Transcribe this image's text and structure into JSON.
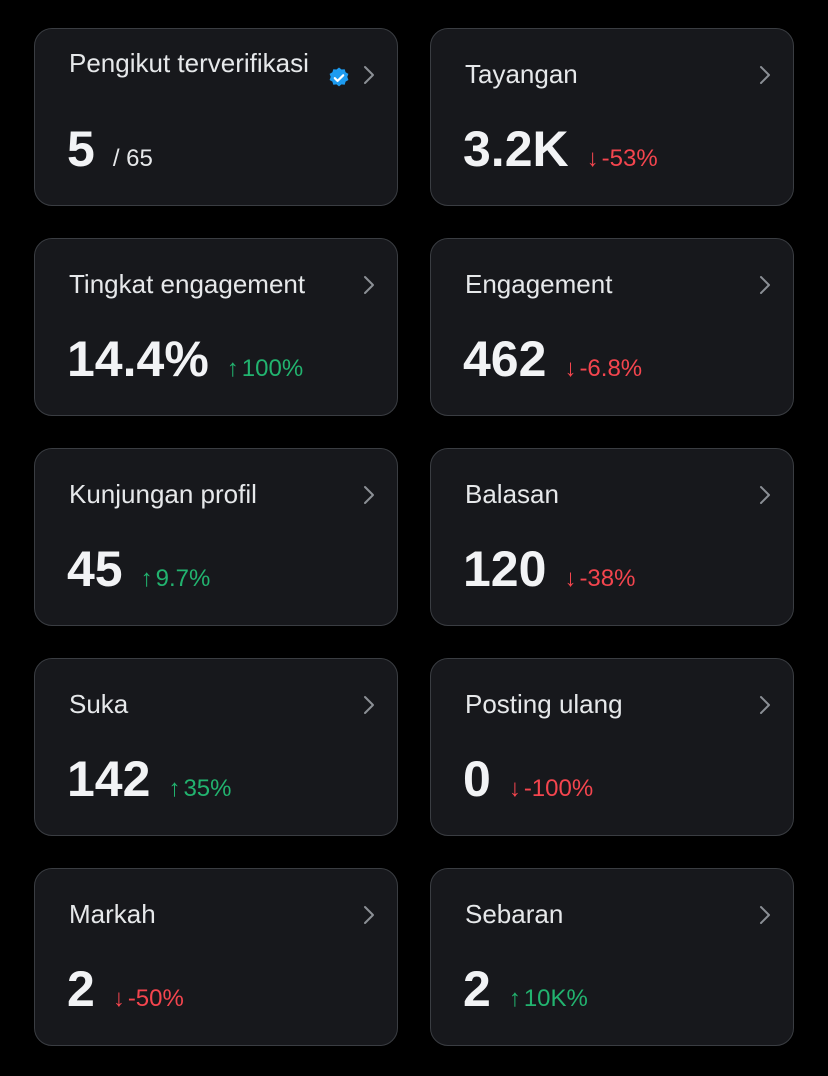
{
  "colors": {
    "background": "#000000",
    "card": "#17181c",
    "card_border": "#3a3d42",
    "positive": "#22b36f",
    "negative": "#f4454e",
    "verified": "#1d9bf0"
  },
  "cards": [
    {
      "label": "Pengikut terverifikasi",
      "value": "5",
      "sub": "/ 65",
      "icon": "verified-badge-icon"
    },
    {
      "label": "Tayangan",
      "value": "3.2K",
      "arrow": "↓",
      "delta": "-53%",
      "direction": "down"
    },
    {
      "label": "Tingkat engagement",
      "value": "14.4%",
      "arrow": "↑",
      "delta": "100%",
      "direction": "up"
    },
    {
      "label": "Engagement",
      "value": "462",
      "arrow": "↓",
      "delta": "-6.8%",
      "direction": "down"
    },
    {
      "label": "Kunjungan profil",
      "value": "45",
      "arrow": "↑",
      "delta": "9.7%",
      "direction": "up"
    },
    {
      "label": "Balasan",
      "value": "120",
      "arrow": "↓",
      "delta": "-38%",
      "direction": "down"
    },
    {
      "label": "Suka",
      "value": "142",
      "arrow": "↑",
      "delta": "35%",
      "direction": "up"
    },
    {
      "label": "Posting ulang",
      "value": "0",
      "arrow": "↓",
      "delta": "-100%",
      "direction": "down"
    },
    {
      "label": "Markah",
      "value": "2",
      "arrow": "↓",
      "delta": "-50%",
      "direction": "down"
    },
    {
      "label": "Sebaran",
      "value": "2",
      "arrow": "↑",
      "delta": "10K%",
      "direction": "up"
    }
  ]
}
